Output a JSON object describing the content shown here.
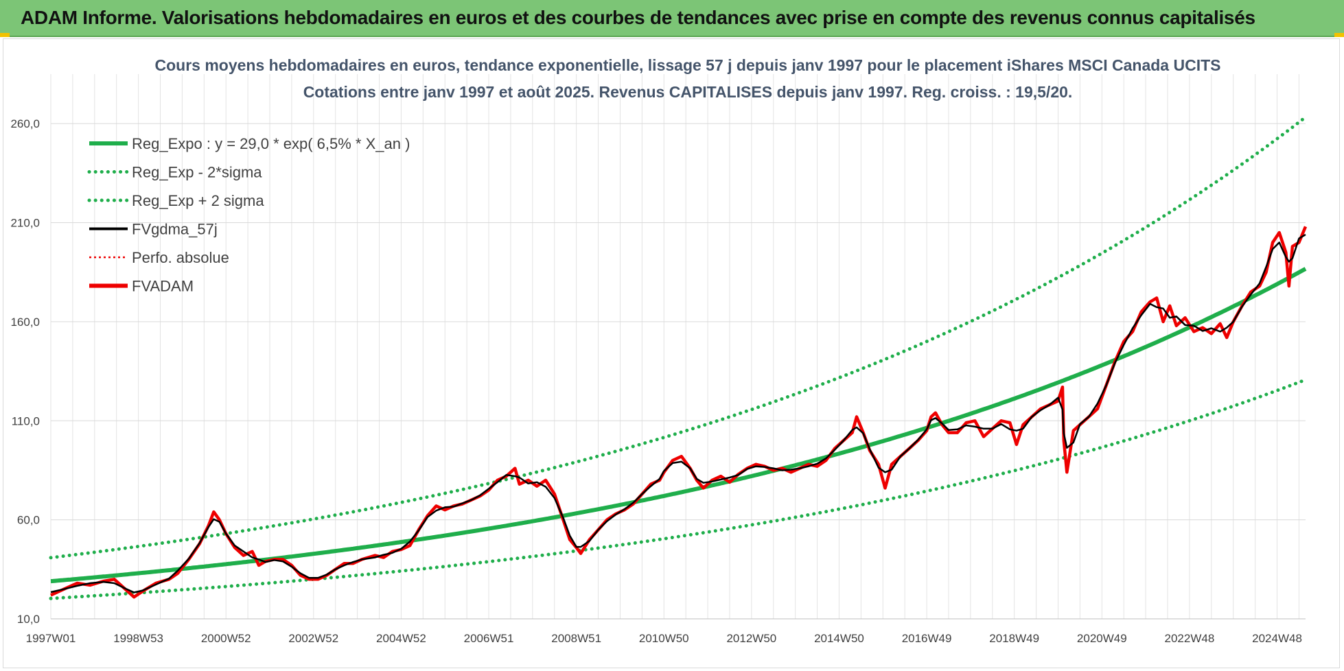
{
  "banner": {
    "title": "ADAM Informe. Valorisations hebdomadaires en euros et des courbes de tendances avec prise en compte des revenus connus capitalisés"
  },
  "colors": {
    "banner_bg": "#7cc576",
    "trend_green": "#1fae4b",
    "gdma_black": "#000000",
    "adam_red": "#ee0000"
  },
  "chart_data": {
    "type": "line",
    "title_lines": [
      "Cours moyens hebdomadaires en euros, tendance exponentielle, lissage 57 j depuis janv 1997 pour le placement iShares MSCI Canada UCITS",
      "Cotations entre janv 1997 et août 2025. Revenus CAPITALISES depuis janv 1997. Reg. croiss. : 19,5/20."
    ],
    "x_range": [
      1997.0,
      2025.65
    ],
    "y_range": [
      10,
      285
    ],
    "y_ticks": [
      10,
      60,
      110,
      160,
      210,
      260
    ],
    "y_tick_labels": [
      "10,0",
      "60,0",
      "110,0",
      "160,0",
      "210,0",
      "260,0"
    ],
    "x_ticks": [
      {
        "label": "1997W01",
        "t": 1997.0
      },
      {
        "label": "1998W53",
        "t": 1999.0
      },
      {
        "label": "2000W52",
        "t": 2001.0
      },
      {
        "label": "2002W52",
        "t": 2003.0
      },
      {
        "label": "2004W52",
        "t": 2005.0
      },
      {
        "label": "2006W51",
        "t": 2007.0
      },
      {
        "label": "2008W51",
        "t": 2009.0
      },
      {
        "label": "2010W50",
        "t": 2011.0
      },
      {
        "label": "2012W50",
        "t": 2013.0
      },
      {
        "label": "2014W50",
        "t": 2015.0
      },
      {
        "label": "2016W49",
        "t": 2017.0
      },
      {
        "label": "2018W49",
        "t": 2019.0
      },
      {
        "label": "2020W49",
        "t": 2021.0
      },
      {
        "label": "2022W48",
        "t": 2023.0
      },
      {
        "label": "2024W48",
        "t": 2025.0
      }
    ],
    "grid": true,
    "legend_position": "top-left",
    "legend": [
      {
        "label": "Reg_Expo : y = 29,0 * exp( 6,5% *  X_an )",
        "style": "solid-thick",
        "color": "#1fae4b"
      },
      {
        "label": "Reg_Exp - 2*sigma",
        "style": "dotted",
        "color": "#1fae4b"
      },
      {
        "label": "Reg_Exp + 2 sigma",
        "style": "dotted",
        "color": "#1fae4b"
      },
      {
        "label": "FVgdma_57j",
        "style": "solid",
        "color": "#000000"
      },
      {
        "label": "Perfo. absolue",
        "style": "dotted",
        "color": "#ee0000"
      },
      {
        "label": "FVADAM",
        "style": "solid-thick",
        "color": "#ee0000"
      }
    ],
    "trend": {
      "a": 29.0,
      "b": 0.065,
      "lower_factor": 0.7,
      "upper_factor": 1.41
    },
    "series": [
      {
        "name": "FVADAM",
        "points": [
          [
            1997.0,
            22
          ],
          [
            1997.3,
            25
          ],
          [
            1997.6,
            28
          ],
          [
            1997.9,
            27
          ],
          [
            1998.2,
            29
          ],
          [
            1998.45,
            30
          ],
          [
            1998.7,
            25
          ],
          [
            1998.9,
            21
          ],
          [
            1999.1,
            24
          ],
          [
            1999.4,
            28
          ],
          [
            1999.7,
            30
          ],
          [
            1999.9,
            33
          ],
          [
            2000.15,
            40
          ],
          [
            2000.4,
            48
          ],
          [
            2000.6,
            57
          ],
          [
            2000.72,
            64
          ],
          [
            2000.85,
            60
          ],
          [
            2001.0,
            53
          ],
          [
            2001.2,
            46
          ],
          [
            2001.4,
            42
          ],
          [
            2001.6,
            44
          ],
          [
            2001.75,
            37
          ],
          [
            2001.9,
            39
          ],
          [
            2002.1,
            40
          ],
          [
            2002.3,
            40
          ],
          [
            2002.5,
            37
          ],
          [
            2002.7,
            32
          ],
          [
            2002.9,
            30
          ],
          [
            2003.1,
            30
          ],
          [
            2003.3,
            32
          ],
          [
            2003.5,
            35
          ],
          [
            2003.7,
            38
          ],
          [
            2003.9,
            38
          ],
          [
            2004.1,
            40
          ],
          [
            2004.4,
            42
          ],
          [
            2004.6,
            41
          ],
          [
            2004.8,
            44
          ],
          [
            2005.0,
            45
          ],
          [
            2005.2,
            47
          ],
          [
            2005.4,
            55
          ],
          [
            2005.6,
            62
          ],
          [
            2005.8,
            67
          ],
          [
            2006.0,
            65
          ],
          [
            2006.2,
            67
          ],
          [
            2006.4,
            68
          ],
          [
            2006.6,
            70
          ],
          [
            2006.8,
            72
          ],
          [
            2007.0,
            75
          ],
          [
            2007.2,
            80
          ],
          [
            2007.4,
            82
          ],
          [
            2007.6,
            86
          ],
          [
            2007.7,
            78
          ],
          [
            2007.9,
            80
          ],
          [
            2008.1,
            77
          ],
          [
            2008.3,
            80
          ],
          [
            2008.5,
            73
          ],
          [
            2008.7,
            60
          ],
          [
            2008.85,
            50
          ],
          [
            2009.0,
            46
          ],
          [
            2009.1,
            43
          ],
          [
            2009.3,
            50
          ],
          [
            2009.5,
            55
          ],
          [
            2009.7,
            60
          ],
          [
            2009.9,
            63
          ],
          [
            2010.1,
            65
          ],
          [
            2010.3,
            68
          ],
          [
            2010.5,
            73
          ],
          [
            2010.7,
            78
          ],
          [
            2010.9,
            80
          ],
          [
            2011.0,
            84
          ],
          [
            2011.2,
            90
          ],
          [
            2011.4,
            92
          ],
          [
            2011.6,
            86
          ],
          [
            2011.75,
            80
          ],
          [
            2011.9,
            76
          ],
          [
            2012.1,
            80
          ],
          [
            2012.3,
            82
          ],
          [
            2012.5,
            79
          ],
          [
            2012.7,
            83
          ],
          [
            2012.9,
            86
          ],
          [
            2013.1,
            88
          ],
          [
            2013.3,
            87
          ],
          [
            2013.5,
            85
          ],
          [
            2013.7,
            86
          ],
          [
            2013.9,
            84
          ],
          [
            2014.1,
            86
          ],
          [
            2014.3,
            88
          ],
          [
            2014.5,
            87
          ],
          [
            2014.7,
            90
          ],
          [
            2014.9,
            96
          ],
          [
            2015.1,
            100
          ],
          [
            2015.3,
            104
          ],
          [
            2015.4,
            112
          ],
          [
            2015.55,
            104
          ],
          [
            2015.7,
            95
          ],
          [
            2015.9,
            88
          ],
          [
            2016.05,
            76
          ],
          [
            2016.2,
            88
          ],
          [
            2016.4,
            92
          ],
          [
            2016.6,
            96
          ],
          [
            2016.8,
            100
          ],
          [
            2017.0,
            105
          ],
          [
            2017.1,
            112
          ],
          [
            2017.2,
            114
          ],
          [
            2017.35,
            108
          ],
          [
            2017.5,
            104
          ],
          [
            2017.7,
            104
          ],
          [
            2017.9,
            109
          ],
          [
            2018.1,
            110
          ],
          [
            2018.3,
            102
          ],
          [
            2018.5,
            106
          ],
          [
            2018.7,
            110
          ],
          [
            2018.9,
            109
          ],
          [
            2019.05,
            98
          ],
          [
            2019.2,
            108
          ],
          [
            2019.4,
            112
          ],
          [
            2019.6,
            116
          ],
          [
            2019.8,
            118
          ],
          [
            2020.0,
            120
          ],
          [
            2020.1,
            127
          ],
          [
            2020.13,
            100
          ],
          [
            2020.2,
            84
          ],
          [
            2020.35,
            105
          ],
          [
            2020.5,
            108
          ],
          [
            2020.7,
            112
          ],
          [
            2020.9,
            116
          ],
          [
            2021.1,
            128
          ],
          [
            2021.3,
            140
          ],
          [
            2021.5,
            150
          ],
          [
            2021.7,
            155
          ],
          [
            2021.9,
            165
          ],
          [
            2022.1,
            170
          ],
          [
            2022.25,
            172
          ],
          [
            2022.4,
            160
          ],
          [
            2022.55,
            168
          ],
          [
            2022.7,
            158
          ],
          [
            2022.9,
            162
          ],
          [
            2023.1,
            155
          ],
          [
            2023.3,
            157
          ],
          [
            2023.5,
            154
          ],
          [
            2023.7,
            159
          ],
          [
            2023.85,
            152
          ],
          [
            2024.0,
            160
          ],
          [
            2024.2,
            168
          ],
          [
            2024.4,
            175
          ],
          [
            2024.6,
            178
          ],
          [
            2024.75,
            185
          ],
          [
            2024.9,
            200
          ],
          [
            2025.05,
            205
          ],
          [
            2025.2,
            195
          ],
          [
            2025.27,
            178
          ],
          [
            2025.35,
            198
          ],
          [
            2025.5,
            200
          ],
          [
            2025.65,
            208
          ]
        ]
      }
    ]
  }
}
